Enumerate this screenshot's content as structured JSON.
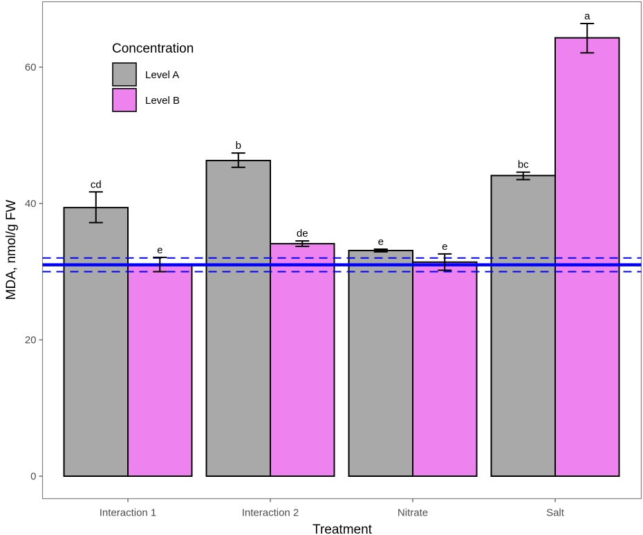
{
  "chart_data": {
    "type": "bar",
    "title": "",
    "xlabel": "Treatment",
    "ylabel": "MDA, nmol/g FW",
    "ylim": [
      -3.3,
      69.6
    ],
    "yticks": [
      0,
      20,
      40,
      60
    ],
    "ytick_labels": [
      "0",
      "20",
      "40",
      "60"
    ],
    "grid": false,
    "categories": [
      "Interaction 1",
      "Interaction 2",
      "Nitrate",
      "Salt"
    ],
    "legend": {
      "title": "Concentration",
      "placement": "top-left",
      "entries": [
        "Level A",
        "Level B"
      ]
    },
    "series": [
      {
        "name": "Level A",
        "color": "#A9A9A9",
        "values": [
          39.4,
          46.3,
          33.1,
          44.1
        ],
        "error_low": [
          37.2,
          45.3,
          32.9,
          43.5
        ],
        "error_high": [
          41.7,
          47.4,
          33.3,
          44.6
        ],
        "significance": [
          "cd",
          "b",
          "e",
          "bc"
        ]
      },
      {
        "name": "Level B",
        "color": "#EE82EE",
        "values": [
          31.0,
          34.1,
          31.4,
          64.3
        ],
        "error_low": [
          30.0,
          33.7,
          30.2,
          62.1
        ],
        "error_high": [
          32.1,
          34.5,
          32.6,
          66.4
        ],
        "significance": [
          "e",
          "de",
          "e",
          "a"
        ]
      }
    ],
    "reference_lines": {
      "color": "#0000FF",
      "mean": 31.0,
      "lower": 30.0,
      "upper": 32.0
    }
  }
}
